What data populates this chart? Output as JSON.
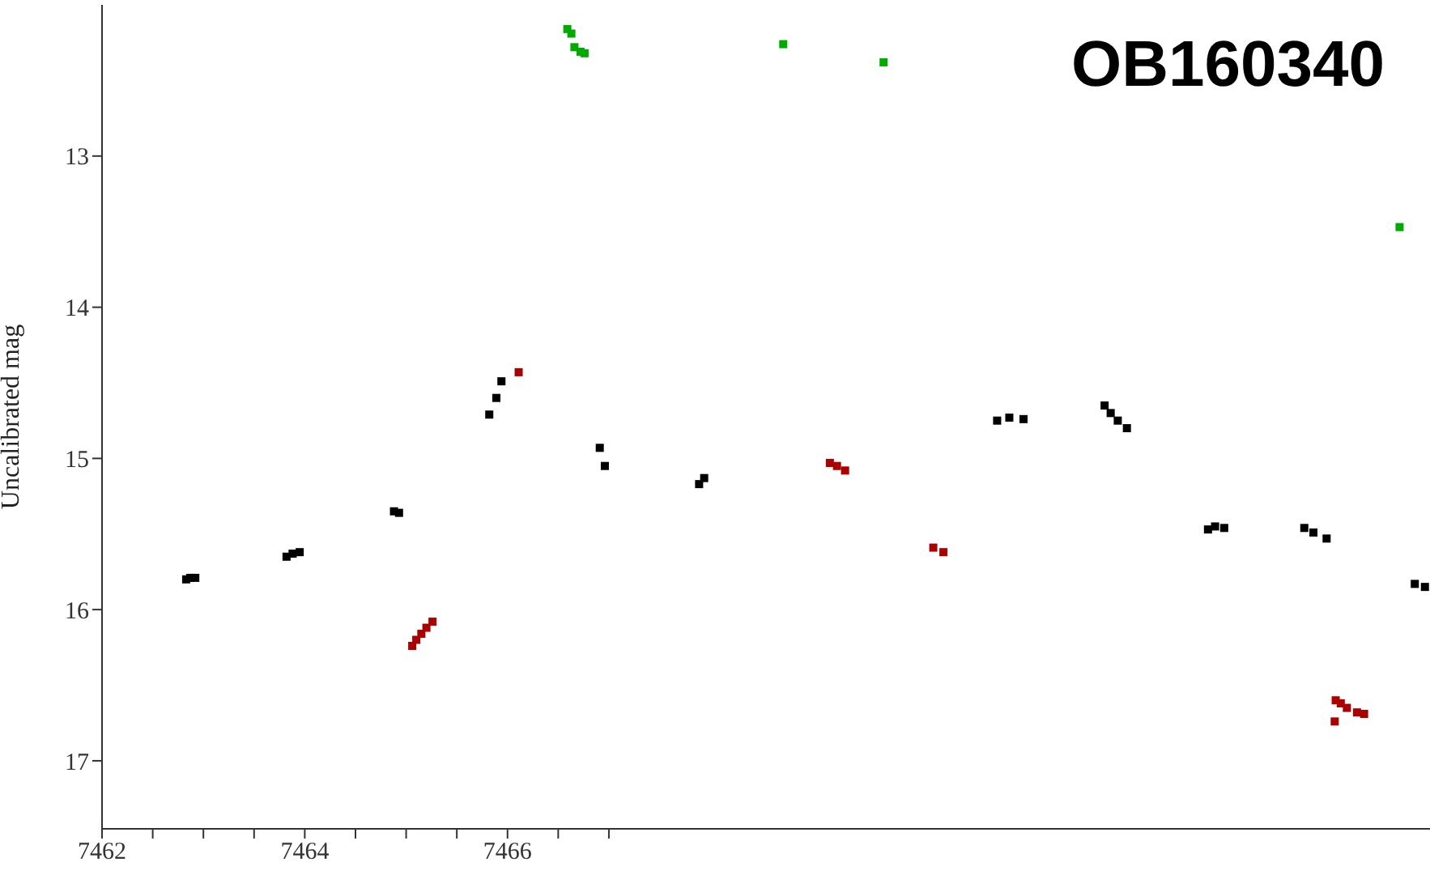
{
  "chart_data": {
    "type": "scatter",
    "title": "OB160340",
    "ylabel": "Uncalibrated mag",
    "marker": "square",
    "xlim": [
      7462,
      7475.1
    ],
    "ylim": [
      17.45,
      12.0
    ],
    "xticks": [
      7462,
      {
        "value": 7462.5,
        "label": null
      },
      {
        "value": 7463,
        "label": null
      },
      {
        "value": 7463.5,
        "label": null
      },
      7464,
      {
        "value": 7464.5,
        "label": null
      },
      {
        "value": 7465,
        "label": null
      },
      {
        "value": 7465.5,
        "label": null
      },
      7466,
      {
        "value": 7466.5,
        "label": null
      },
      {
        "value": 7467,
        "label": null
      }
    ],
    "yticks": [
      13,
      14,
      15,
      16,
      17
    ],
    "series": [
      {
        "color": "#000000",
        "x": [
          7462.83,
          7462.87,
          7462.92,
          7463.82,
          7463.88,
          7463.95,
          7464.88,
          7464.93,
          7465.82,
          7465.89,
          7465.94,
          7466.91,
          7466.96,
          7467.89,
          7467.94,
          7470.83,
          7470.95,
          7471.09,
          7471.89,
          7471.95,
          7472.02,
          7472.11,
          7472.91,
          7472.98,
          7473.07,
          7473.86,
          7473.95,
          7474.08,
          7474.95,
          7475.05
        ],
        "values": [
          15.8,
          15.79,
          15.79,
          15.65,
          15.63,
          15.62,
          15.35,
          15.36,
          14.71,
          14.6,
          14.49,
          14.93,
          15.05,
          15.17,
          15.13,
          14.75,
          14.73,
          14.74,
          14.65,
          14.7,
          14.75,
          14.8,
          15.47,
          15.45,
          15.46,
          15.46,
          15.49,
          15.53,
          15.83,
          15.85
        ]
      },
      {
        "color": "#aa0000",
        "x": [
          7465.06,
          7465.1,
          7465.15,
          7465.2,
          7465.26,
          7466.11,
          7469.18,
          7469.25,
          7469.33,
          7470.2,
          7470.3,
          7474.17,
          7474.22,
          7474.28,
          7474.38,
          7474.45,
          7474.16
        ],
        "values": [
          16.24,
          16.2,
          16.16,
          16.12,
          16.08,
          14.43,
          15.03,
          15.05,
          15.08,
          15.59,
          15.62,
          16.6,
          16.62,
          16.65,
          16.68,
          16.69,
          16.74
        ]
      },
      {
        "color": "#00aa00",
        "x": [
          7466.59,
          7466.63,
          7466.66,
          7466.72,
          7466.76,
          7468.72,
          7469.71,
          7474.8
        ],
        "values": [
          12.16,
          12.19,
          12.28,
          12.31,
          12.32,
          12.26,
          12.38,
          13.47
        ]
      }
    ]
  }
}
